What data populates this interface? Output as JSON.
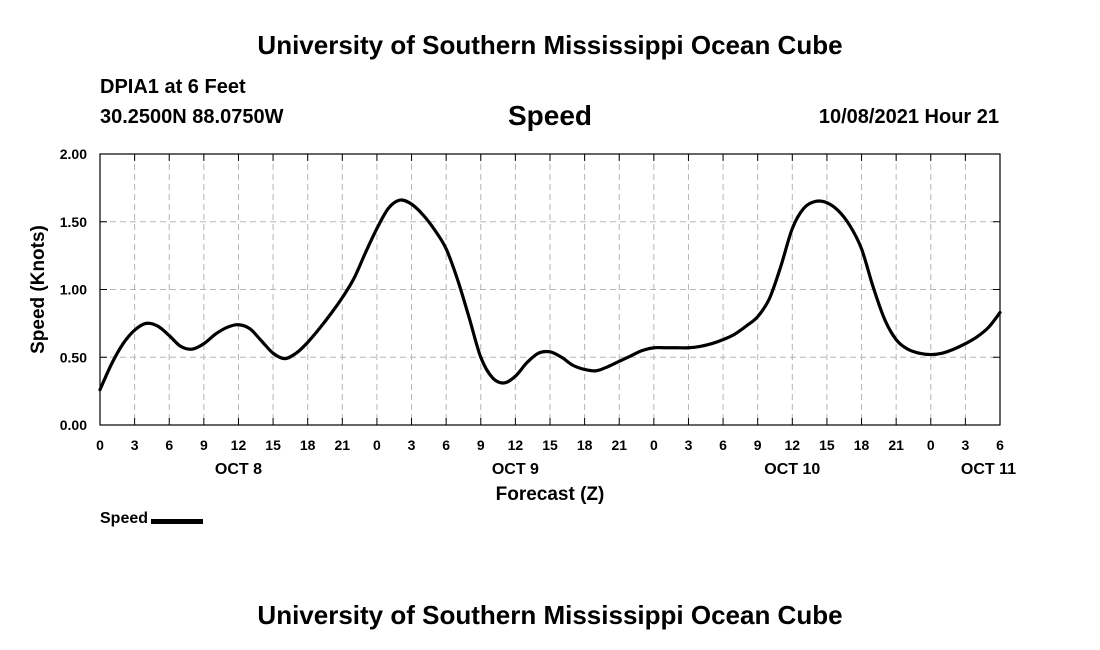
{
  "header": {
    "title": "University of Southern Mississippi Ocean Cube",
    "station": "DPIA1 at 6 Feet",
    "coords": "30.2500N  88.0750W",
    "datetime": "10/08/2021 Hour 21"
  },
  "footer": {
    "title": "University of Southern Mississippi Ocean Cube"
  },
  "legend": {
    "label": "Speed"
  },
  "chart_data": {
    "type": "line",
    "title": "Speed",
    "xlabel": "Forecast (Z)",
    "ylabel": "Speed (Knots)",
    "xlim": [
      0,
      78
    ],
    "ylim": [
      0,
      2
    ],
    "grid": true,
    "x_ticks": [
      0,
      3,
      6,
      9,
      12,
      15,
      18,
      21,
      24,
      27,
      30,
      33,
      36,
      39,
      42,
      45,
      48,
      51,
      54,
      57,
      60,
      63,
      66,
      69,
      72,
      75,
      78
    ],
    "x_tick_labels": [
      "0",
      "3",
      "6",
      "9",
      "12",
      "15",
      "18",
      "21",
      "0",
      "3",
      "6",
      "9",
      "12",
      "15",
      "18",
      "21",
      "0",
      "3",
      "6",
      "9",
      "12",
      "15",
      "18",
      "21",
      "0",
      "3",
      "6"
    ],
    "day_labels": [
      {
        "label": "OCT 8",
        "hour": 12
      },
      {
        "label": "OCT 9",
        "hour": 36
      },
      {
        "label": "OCT 10",
        "hour": 60
      },
      {
        "label": "OCT 11",
        "hour": 77
      }
    ],
    "y_ticks": [
      0.0,
      0.5,
      1.0,
      1.5,
      2.0
    ],
    "y_tick_labels": [
      "0.00",
      "0.50",
      "1.00",
      "1.50",
      "2.00"
    ],
    "series": [
      {
        "name": "Speed",
        "color": "#000000",
        "x": [
          0,
          1,
          2,
          3,
          4,
          5,
          6,
          7,
          8,
          9,
          10,
          11,
          12,
          13,
          14,
          15,
          16,
          17,
          18,
          19,
          20,
          21,
          22,
          23,
          24,
          25,
          26,
          27,
          28,
          29,
          30,
          31,
          32,
          33,
          34,
          35,
          36,
          37,
          38,
          39,
          40,
          41,
          42,
          43,
          44,
          45,
          46,
          47,
          48,
          49,
          50,
          51,
          52,
          53,
          54,
          55,
          56,
          57,
          58,
          59,
          60,
          61,
          62,
          63,
          64,
          65,
          66,
          67,
          68,
          69,
          70,
          71,
          72,
          73,
          74,
          75,
          76,
          77,
          78
        ],
        "values": [
          0.26,
          0.45,
          0.6,
          0.7,
          0.75,
          0.73,
          0.66,
          0.58,
          0.56,
          0.6,
          0.67,
          0.72,
          0.74,
          0.71,
          0.62,
          0.53,
          0.49,
          0.53,
          0.61,
          0.71,
          0.82,
          0.94,
          1.08,
          1.27,
          1.45,
          1.6,
          1.66,
          1.63,
          1.55,
          1.44,
          1.3,
          1.07,
          0.79,
          0.5,
          0.35,
          0.31,
          0.36,
          0.46,
          0.53,
          0.54,
          0.5,
          0.44,
          0.41,
          0.4,
          0.43,
          0.47,
          0.51,
          0.55,
          0.57,
          0.57,
          0.57,
          0.57,
          0.58,
          0.6,
          0.63,
          0.67,
          0.73,
          0.8,
          0.93,
          1.17,
          1.45,
          1.6,
          1.65,
          1.64,
          1.58,
          1.47,
          1.3,
          1.02,
          0.78,
          0.63,
          0.56,
          0.53,
          0.52,
          0.53,
          0.56,
          0.6,
          0.65,
          0.72,
          0.83
        ]
      }
    ]
  }
}
